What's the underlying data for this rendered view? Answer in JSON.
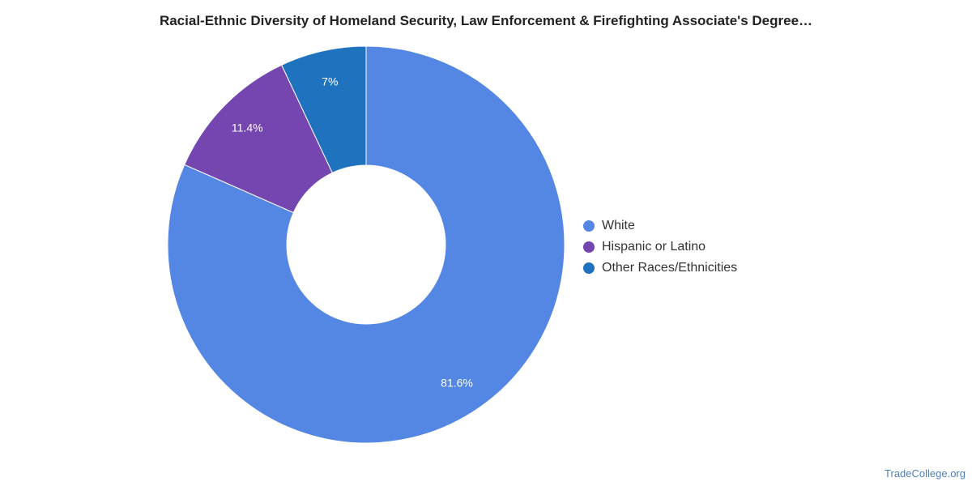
{
  "chart_data": {
    "type": "pie",
    "title": "Racial-Ethnic Diversity of Homeland Security, Law Enforcement & Firefighting Associate's Degree…",
    "donut": true,
    "legend_position": "right",
    "slices": [
      {
        "name": "White",
        "value": 81.6,
        "label": "81.6%",
        "color": "#5486e3"
      },
      {
        "name": "Hispanic or Latino",
        "value": 11.4,
        "label": "11.4%",
        "color": "#7546b0"
      },
      {
        "name": "Other Races/Ethnicities",
        "value": 7.0,
        "label": "7%",
        "color": "#1f73be"
      }
    ]
  },
  "watermark": "TradeCollege.org"
}
